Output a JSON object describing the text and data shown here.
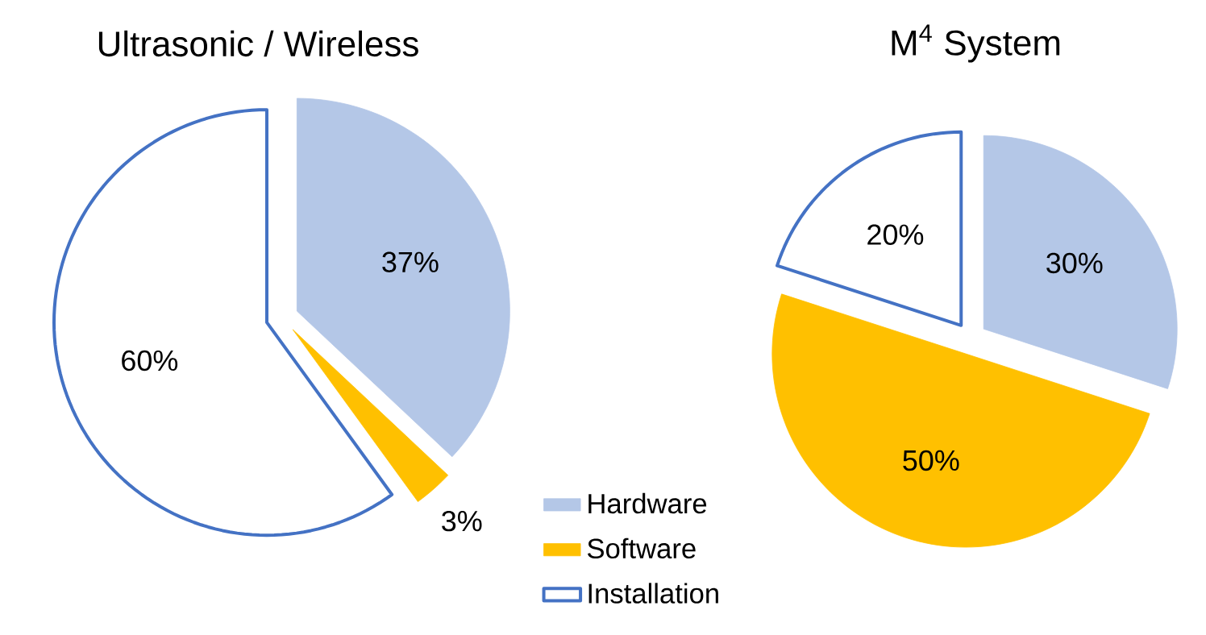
{
  "chart_data": [
    {
      "type": "pie",
      "title": "Ultrasonic / Wireless",
      "categories": [
        "Hardware",
        "Software",
        "Installation"
      ],
      "values": [
        37,
        3,
        60
      ],
      "colors": [
        "#b4c7e7",
        "#ffc000",
        "#ffffff"
      ],
      "value_labels": [
        "37%",
        "3%",
        "60%"
      ],
      "legend": "bottom right"
    },
    {
      "type": "pie",
      "title": "M$^{4}$ System",
      "categories": [
        null,
        null,
        null
      ],
      "values": [
        30,
        50,
        20
      ],
      "colors": [
        "#b4c7e7",
        "#ffc000",
        "#ffffff"
      ],
      "value_labels": [
        "30%",
        "50%",
        "20%"
      ]
    }
  ]
}
